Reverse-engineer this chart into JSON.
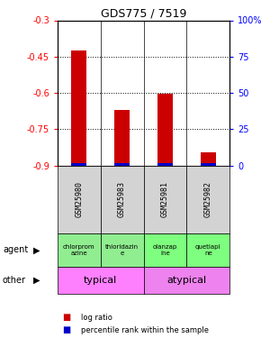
{
  "title": "GDS775 / 7519",
  "samples": [
    "GSM25980",
    "GSM25983",
    "GSM25981",
    "GSM25982"
  ],
  "log_ratios": [
    -0.425,
    -0.67,
    -0.605,
    -0.845
  ],
  "perc_values": [
    2,
    2,
    2,
    2
  ],
  "ylim_left": [
    -0.9,
    -0.3
  ],
  "ylim_right": [
    0,
    100
  ],
  "yticks_left": [
    -0.9,
    -0.75,
    -0.6,
    -0.45,
    -0.3
  ],
  "yticks_right": [
    0,
    25,
    50,
    75,
    100
  ],
  "ytick_labels_left": [
    "-0.9",
    "-0.75",
    "-0.6",
    "-0.45",
    "-0.3"
  ],
  "ytick_labels_right": [
    "0",
    "25",
    "50",
    "75",
    "100%"
  ],
  "agent_labels": [
    "chlorprom\nazine",
    "thioridazin\ne",
    "olanzap\nine",
    "quetiapi\nne"
  ],
  "agent_colors_left": [
    "#90EE90",
    "#90EE90"
  ],
  "agent_colors_right": [
    "#7FFF7F",
    "#7FFF7F"
  ],
  "typical_color": "#FF80FF",
  "atypical_color": "#EE82EE",
  "sample_bg": "#D3D3D3",
  "bar_color_red": "#CC0000",
  "bar_color_blue": "#0000CC",
  "legend_red": "log ratio",
  "legend_blue": "percentile rank within the sample"
}
